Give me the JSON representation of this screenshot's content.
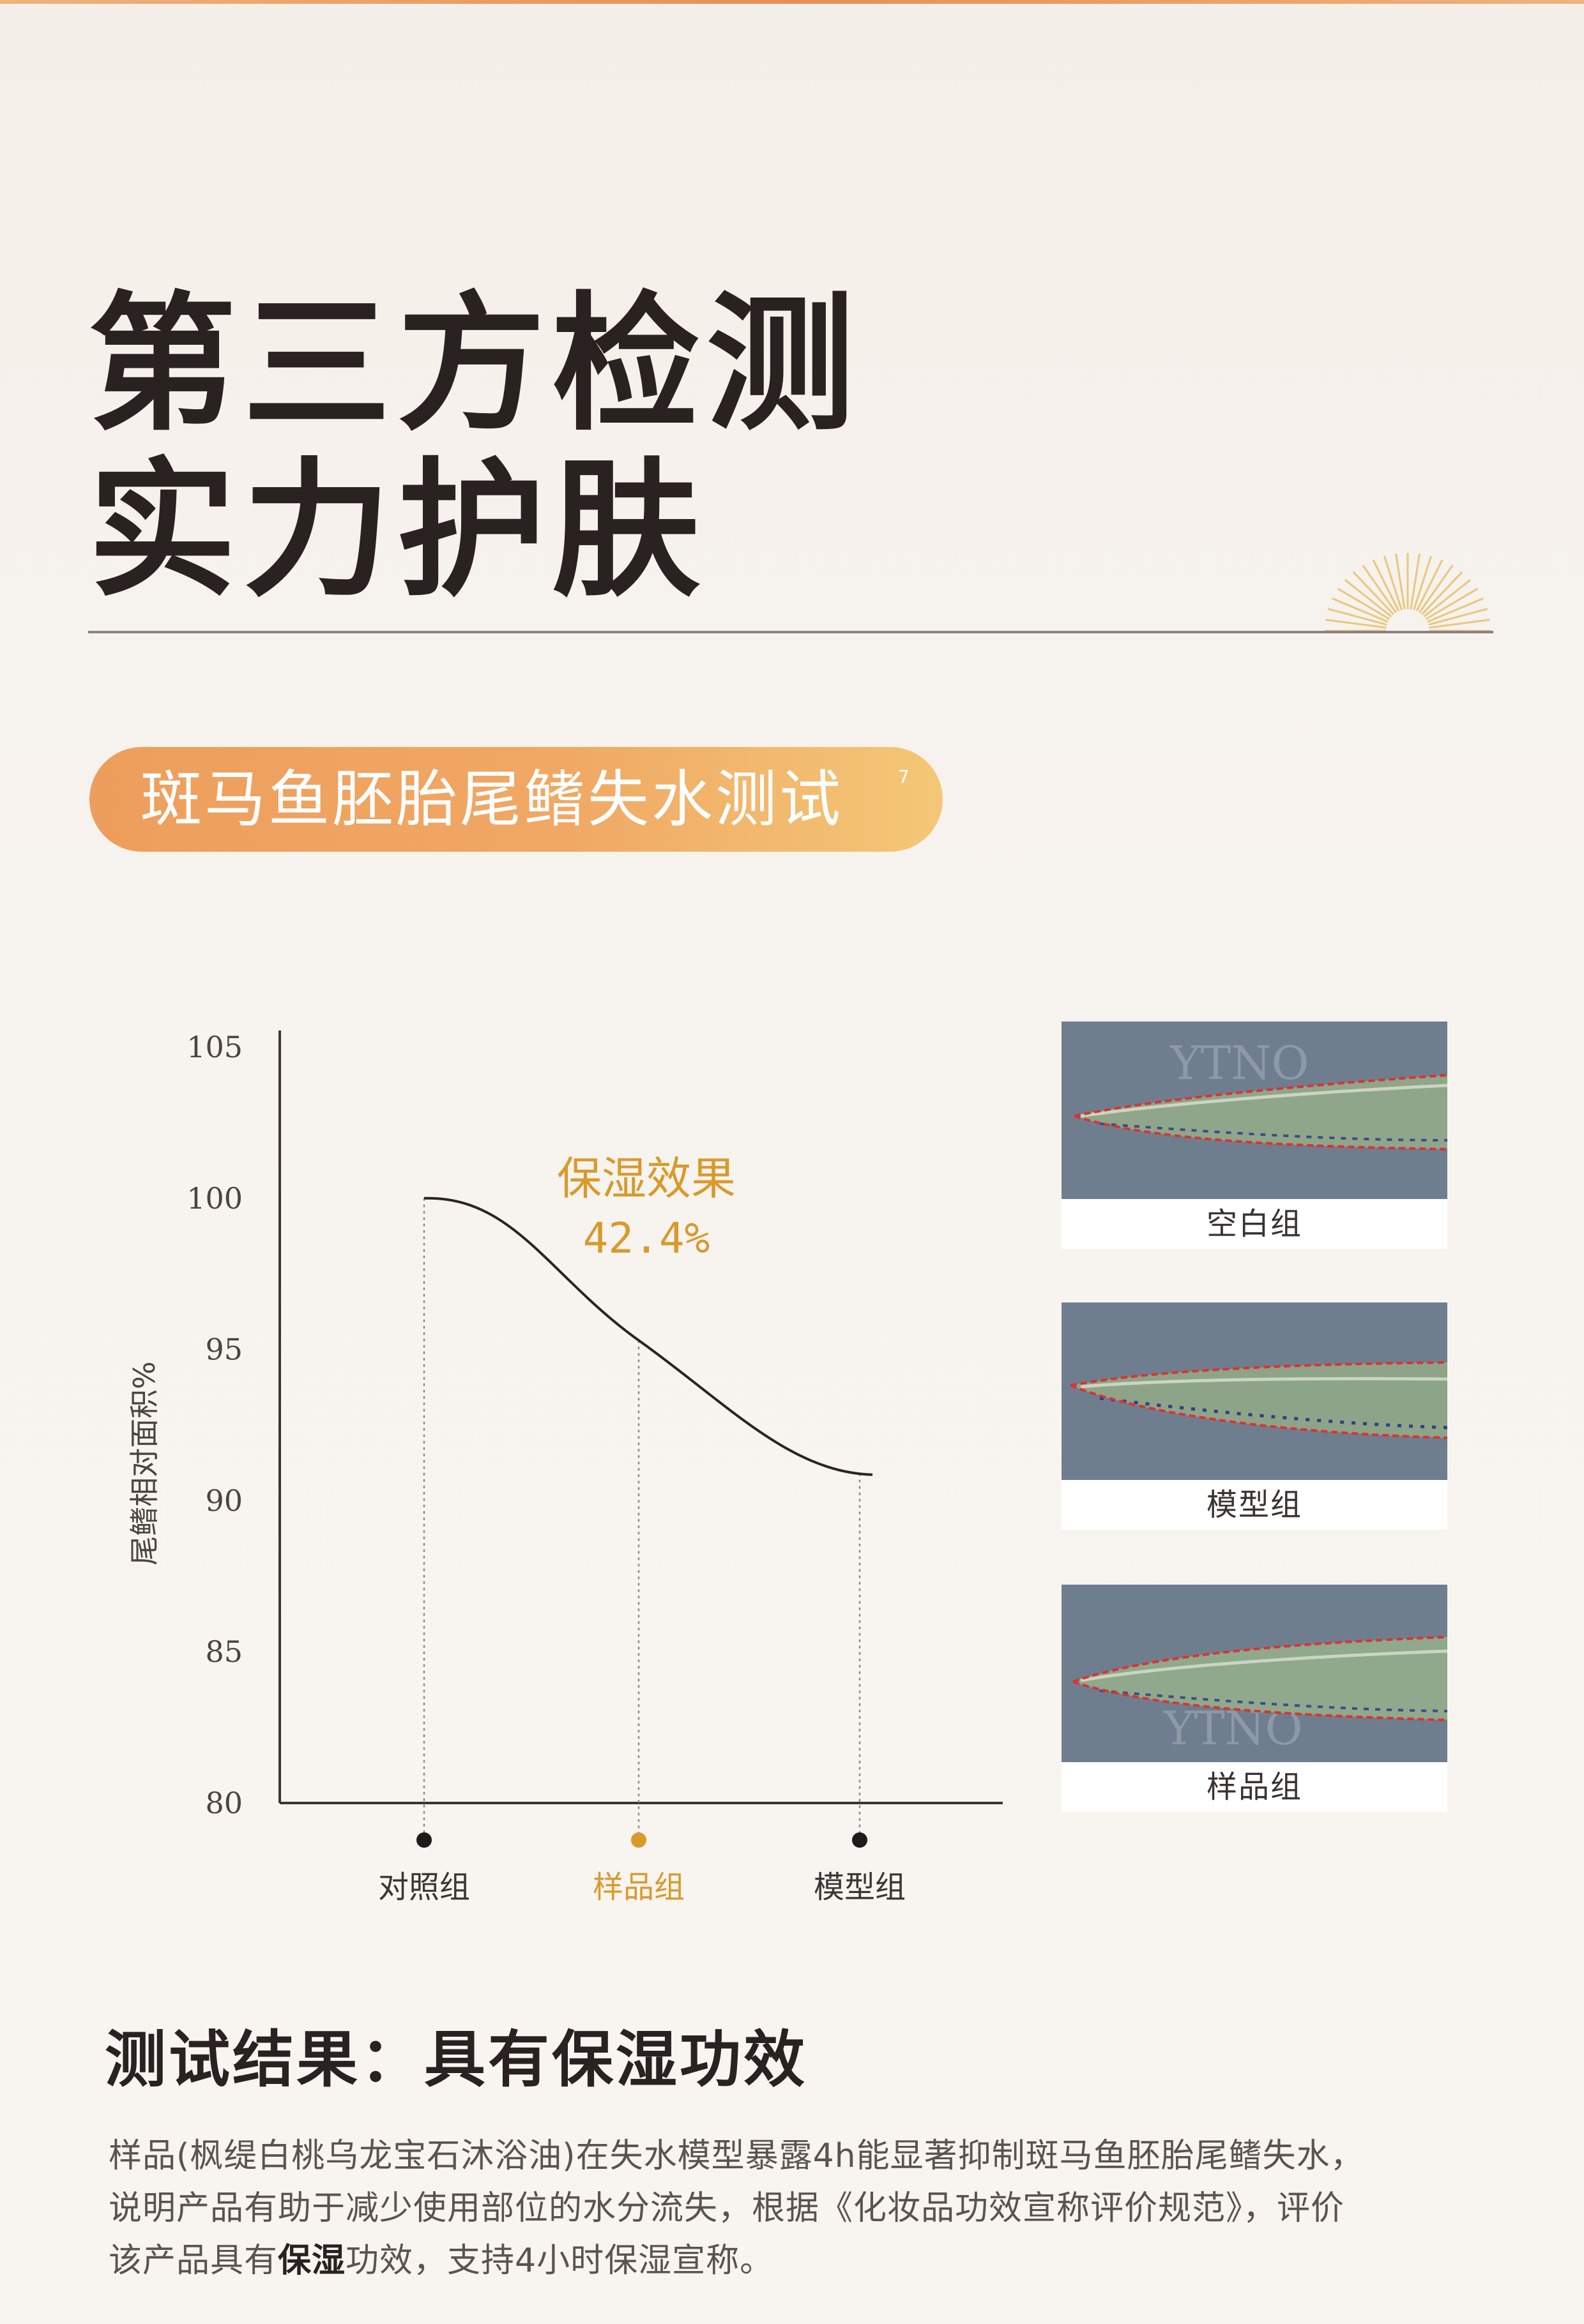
{
  "page": {
    "headline_line1": "第三方检测",
    "headline_line2": "实力护肤",
    "test_name": "斑马鱼胚胎尾鳍失水测试",
    "test_footnote": "7"
  },
  "chart_data": {
    "type": "line",
    "ylabel": "尾鳍相对面积%",
    "ylim": [
      80,
      105
    ],
    "yticks": [
      "105",
      "100",
      "95",
      "90",
      "85",
      "80"
    ],
    "categories": [
      "对照组",
      "样品组",
      "模型组"
    ],
    "values": [
      100,
      95.3,
      90.9
    ],
    "annotation_title": "保湿效果",
    "annotation_value": "42.4%",
    "highlight_category": "样品组",
    "grid": false,
    "colors": {
      "line": "#2a2523",
      "highlight": "#d99a2c",
      "marker": "#1d1a19",
      "axis": "#3b3634"
    }
  },
  "fish_images": [
    {
      "label": "空白组",
      "watermark": "YTNO"
    },
    {
      "label": "模型组"
    },
    {
      "label": "样品组",
      "watermark": "YTNO"
    }
  ],
  "result": {
    "title": "测试结果：具有保湿功效",
    "line1": "样品(枫缇白桃乌龙宝石沐浴油)在失水模型暴露4h能显著抑制斑马鱼胚胎尾鳍失水，",
    "line2": "说明产品有助于减少使用部位的水分流失，根据《化妆品功效宣称评价规范》，评价",
    "line3_pre": "该产品具有",
    "line3_bold": "保湿",
    "line3_post": "功效，支持4小时保湿宣称。"
  }
}
